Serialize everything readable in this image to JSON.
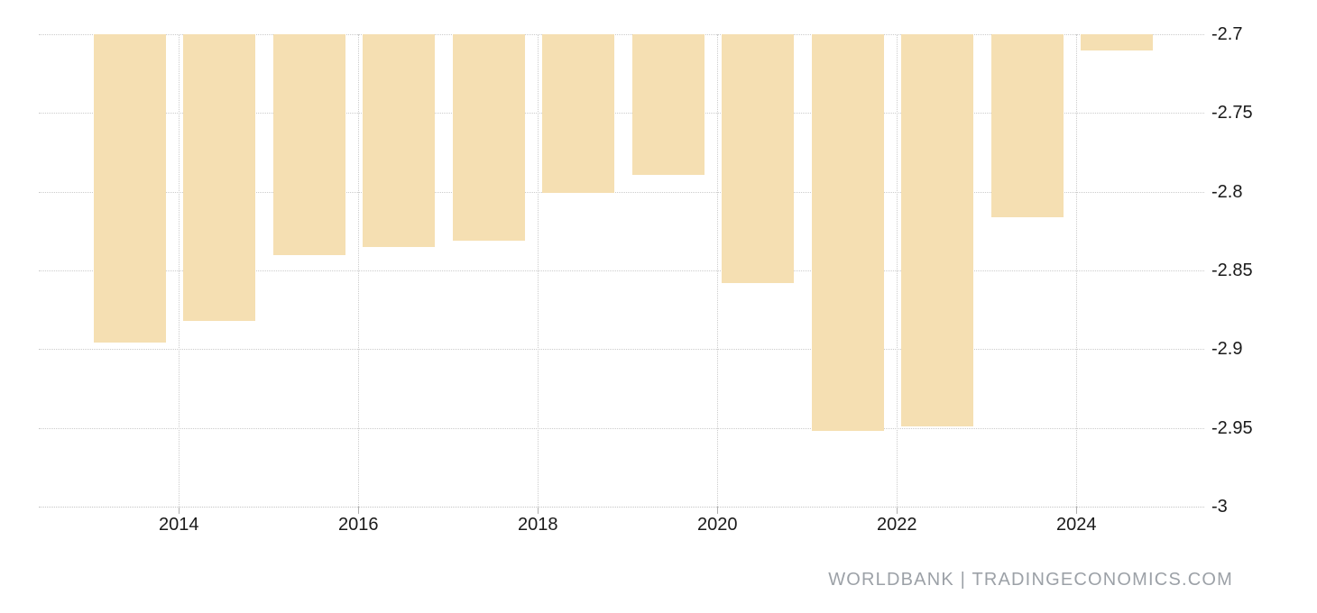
{
  "chart_data": {
    "type": "bar",
    "title": "",
    "x": [
      2013,
      2014,
      2015,
      2016,
      2017,
      2018,
      2019,
      2020,
      2021,
      2022,
      2023,
      2024
    ],
    "values": [
      -2.896,
      -2.882,
      -2.84,
      -2.835,
      -2.831,
      -2.801,
      -2.789,
      -2.858,
      -2.952,
      -2.949,
      -2.816,
      -2.71
    ],
    "baseline": -2.7,
    "ylim": [
      -3.0,
      -2.7
    ],
    "yticks": [
      -2.7,
      -2.75,
      -2.8,
      -2.85,
      -2.9,
      -2.95,
      -3
    ],
    "ytick_labels": [
      "-2.7",
      "-2.75",
      "-2.8",
      "-2.85",
      "-2.9",
      "-2.95",
      "-3"
    ],
    "xticks": [
      2014,
      2016,
      2018,
      2020,
      2022,
      2024
    ],
    "xtick_labels": [
      "2014",
      "2016",
      "2018",
      "2020",
      "2022",
      "2024"
    ],
    "xlabel": "",
    "ylabel": "",
    "legend": "none",
    "grid": "dotted",
    "yaxis_position": "right"
  },
  "colors": {
    "bar": "#f5dfb2",
    "grid": "#cccccc",
    "axis_text": "#1a1a1a",
    "credit_text": "#9ca1a7",
    "background": "#ffffff"
  },
  "footer": {
    "text": "WORLDBANK | TRADINGECONOMICS.COM"
  }
}
